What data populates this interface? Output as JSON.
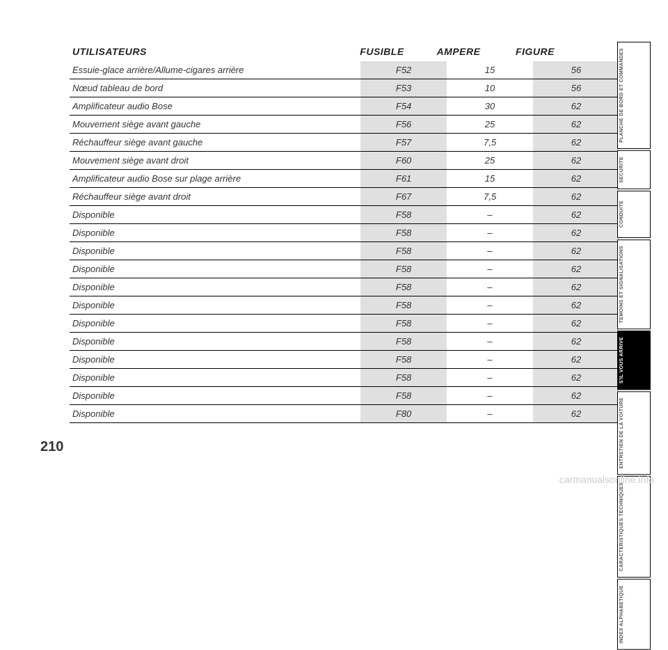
{
  "pageNumber": "210",
  "watermark": "carmanualsonline.info",
  "headers": {
    "utilisateurs": "UTILISATEURS",
    "fusible": "FUSIBLE",
    "ampere": "AMPERE",
    "figure": "FIGURE"
  },
  "tabs": [
    {
      "label": "PLANCHE DE\nBORD ET\nCOMMANDES",
      "active": false
    },
    {
      "label": "SECURITE",
      "active": false
    },
    {
      "label": "CONDUITE",
      "active": false,
      "tall": true
    },
    {
      "label": "TEMOINS ET\nSIGNALISATIONS",
      "active": false
    },
    {
      "label": "S'IL VOUS\nARRIVE",
      "active": true
    },
    {
      "label": "ENTRETIEN\nDE LA VOITURE",
      "active": false
    },
    {
      "label": "CARACTERISTIQUES\nTECHNIQUES",
      "active": false
    },
    {
      "label": "INDEX\nALPHABETIQUE",
      "active": false
    }
  ],
  "rows": [
    {
      "u": "Essuie-glace arrière/Allume-cigares arrière",
      "f": "F52",
      "a": "15",
      "fig": "56"
    },
    {
      "u": "Nœud tableau de bord",
      "f": "F53",
      "a": "10",
      "fig": "56"
    },
    {
      "u": "Amplificateur audio Bose",
      "f": "F54",
      "a": "30",
      "fig": "62"
    },
    {
      "u": "Mouvement siège avant gauche",
      "f": "F56",
      "a": "25",
      "fig": "62"
    },
    {
      "u": "Réchauffeur siège avant gauche",
      "f": "F57",
      "a": "7,5",
      "fig": "62"
    },
    {
      "u": "Mouvement siège avant droit",
      "f": "F60",
      "a": "25",
      "fig": "62"
    },
    {
      "u": "Amplificateur audio Bose sur plage arrière",
      "f": "F61",
      "a": "15",
      "fig": "62"
    },
    {
      "u": "Réchauffeur siège avant droit",
      "f": "F67",
      "a": "7,5",
      "fig": "62"
    },
    {
      "u": "Disponible",
      "f": "F58",
      "a": "–",
      "fig": "62"
    },
    {
      "u": "Disponible",
      "f": "F58",
      "a": "–",
      "fig": "62"
    },
    {
      "u": "Disponible",
      "f": "F58",
      "a": "–",
      "fig": "62"
    },
    {
      "u": "Disponible",
      "f": "F58",
      "a": "–",
      "fig": "62"
    },
    {
      "u": "Disponible",
      "f": "F58",
      "a": "–",
      "fig": "62"
    },
    {
      "u": "Disponible",
      "f": "F58",
      "a": "–",
      "fig": "62"
    },
    {
      "u": "Disponible",
      "f": "F58",
      "a": "–",
      "fig": "62"
    },
    {
      "u": "Disponible",
      "f": "F58",
      "a": "–",
      "fig": "62"
    },
    {
      "u": "Disponible",
      "f": "F58",
      "a": "–",
      "fig": "62"
    },
    {
      "u": "Disponible",
      "f": "F58",
      "a": "–",
      "fig": "62"
    },
    {
      "u": "Disponible",
      "f": "F58",
      "a": "–",
      "fig": "62"
    },
    {
      "u": "Disponible",
      "f": "F80",
      "a": "–",
      "fig": "62"
    }
  ],
  "styling": {
    "header_fontsize": 14,
    "row_fontsize": 13,
    "row_border_color": "#000000",
    "shaded_col_bg": "#e0e0e0",
    "page_bg": "#ffffff",
    "tab_active_bg": "#000000",
    "tab_active_fg": "#ffffff",
    "tab_inactive_bg": "#ffffff",
    "tab_inactive_fg": "#555555",
    "watermark_color": "#cccccc"
  }
}
